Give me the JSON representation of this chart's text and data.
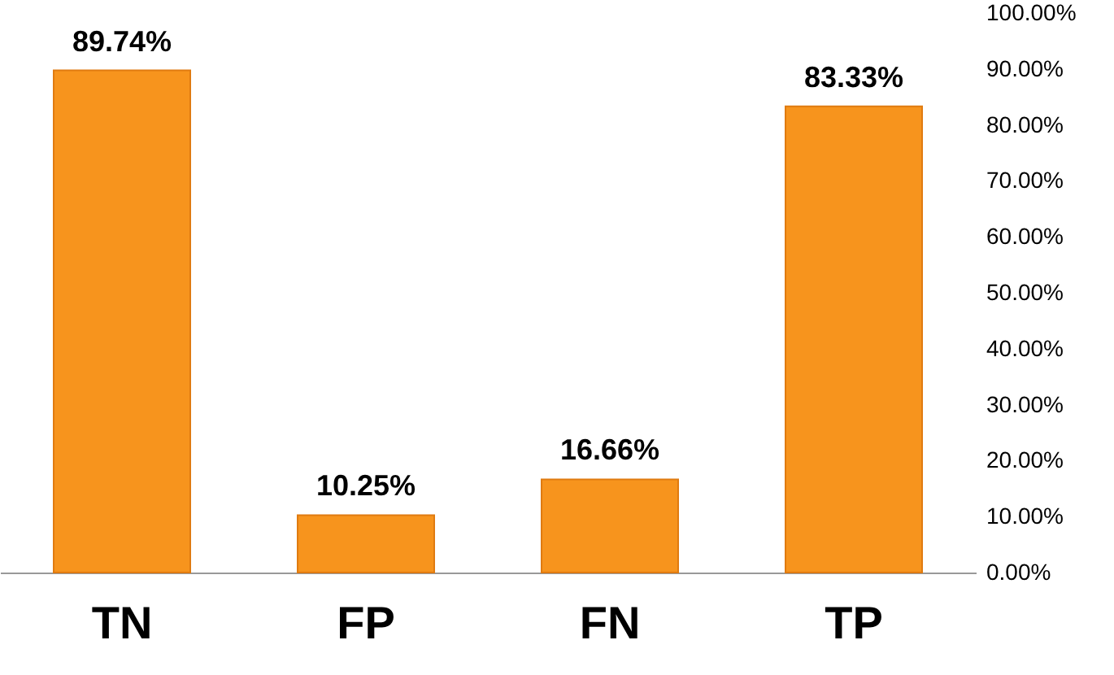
{
  "chart_data": {
    "type": "bar",
    "categories": [
      "TN",
      "FP",
      "FN",
      "TP"
    ],
    "values": [
      89.74,
      10.25,
      16.66,
      83.33
    ],
    "color": "#f7941d",
    "value_labels": [
      "89.74%",
      "10.25%",
      "16.66%",
      "83.33%"
    ],
    "ylim": [
      0,
      100
    ],
    "yticks": [
      {
        "value": 0,
        "label": "0.00%"
      },
      {
        "value": 10,
        "label": "10.00%"
      },
      {
        "value": 20,
        "label": "20.00%"
      },
      {
        "value": 30,
        "label": "30.00%"
      },
      {
        "value": 40,
        "label": "40.00%"
      },
      {
        "value": 50,
        "label": "50.00%"
      },
      {
        "value": 60,
        "label": "60.00%"
      },
      {
        "value": 70,
        "label": "70.00%"
      },
      {
        "value": 80,
        "label": "80.00%"
      },
      {
        "value": 90,
        "label": "90.00%"
      },
      {
        "value": 100,
        "label": "100.00%"
      }
    ],
    "grid": false
  }
}
